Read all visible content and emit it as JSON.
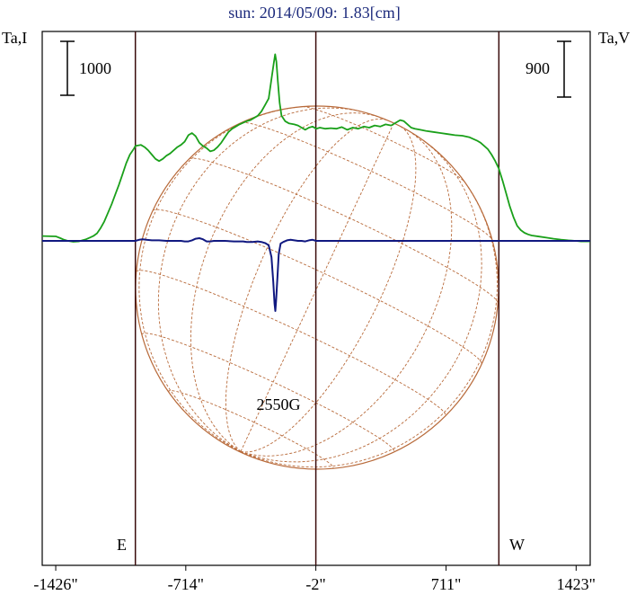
{
  "chart_data": {
    "type": "line",
    "title": "sun: 2014/05/09: 1.83[cm]",
    "left_axis_label": "Ta,I",
    "right_axis_label": "Ta,V",
    "left_scale_bar": {
      "label": "1000",
      "value": 1000
    },
    "right_scale_bar": {
      "label": "900",
      "value": 900
    },
    "x_unit": "arcsec",
    "xlim": [
      -1500,
      1500
    ],
    "x_ticks": [
      {
        "value": -1426,
        "label": "-1426\""
      },
      {
        "value": -714,
        "label": "-714\""
      },
      {
        "value": -2,
        "label": "-2\""
      },
      {
        "value": 711,
        "label": "711\""
      },
      {
        "value": 1423,
        "label": "1423\""
      }
    ],
    "vertical_lines": [
      -990,
      -2,
      1000
    ],
    "limb_markers": [
      {
        "label": "E",
        "x": -1060
      },
      {
        "label": "W",
        "x": 1110
      }
    ],
    "annotations": [
      {
        "label": "2550G",
        "x": -210
      }
    ],
    "colors": {
      "intensity": "#1aa01a",
      "stokes_v": "#101880",
      "grid": "#b86a3a",
      "axes": "#000000",
      "marker_lines": "#3a0c0c",
      "title": "#1c2a7c"
    },
    "series": [
      {
        "key": "I",
        "points": [
          [
            -1500,
            45
          ],
          [
            -1426,
            42
          ],
          [
            -1420,
            38
          ],
          [
            -1400,
            25
          ],
          [
            -1380,
            10
          ],
          [
            -1360,
            0
          ],
          [
            -1330,
            -8
          ],
          [
            -1300,
            -5
          ],
          [
            -1280,
            5
          ],
          [
            -1260,
            15
          ],
          [
            -1240,
            30
          ],
          [
            -1220,
            45
          ],
          [
            -1200,
            70
          ],
          [
            -1180,
            120
          ],
          [
            -1160,
            180
          ],
          [
            -1140,
            260
          ],
          [
            -1120,
            340
          ],
          [
            -1100,
            430
          ],
          [
            -1080,
            520
          ],
          [
            -1060,
            620
          ],
          [
            -1040,
            720
          ],
          [
            -1020,
            800
          ],
          [
            -1000,
            850
          ],
          [
            -990,
            880
          ],
          [
            -960,
            890
          ],
          [
            -940,
            870
          ],
          [
            -920,
            840
          ],
          [
            -900,
            800
          ],
          [
            -880,
            760
          ],
          [
            -860,
            740
          ],
          [
            -840,
            760
          ],
          [
            -820,
            790
          ],
          [
            -800,
            810
          ],
          [
            -780,
            840
          ],
          [
            -760,
            870
          ],
          [
            -740,
            890
          ],
          [
            -720,
            920
          ],
          [
            -700,
            980
          ],
          [
            -680,
            1000
          ],
          [
            -660,
            970
          ],
          [
            -640,
            910
          ],
          [
            -620,
            880
          ],
          [
            -600,
            860
          ],
          [
            -580,
            830
          ],
          [
            -560,
            840
          ],
          [
            -540,
            870
          ],
          [
            -520,
            910
          ],
          [
            -500,
            960
          ],
          [
            -480,
            1010
          ],
          [
            -460,
            1040
          ],
          [
            -440,
            1060
          ],
          [
            -420,
            1080
          ],
          [
            -400,
            1095
          ],
          [
            -380,
            1110
          ],
          [
            -360,
            1120
          ],
          [
            -340,
            1140
          ],
          [
            -320,
            1160
          ],
          [
            -300,
            1200
          ],
          [
            -280,
            1260
          ],
          [
            -260,
            1320
          ],
          [
            -245,
            1500
          ],
          [
            -232,
            1650
          ],
          [
            -225,
            1730
          ],
          [
            -218,
            1660
          ],
          [
            -210,
            1480
          ],
          [
            -200,
            1280
          ],
          [
            -190,
            1160
          ],
          [
            -170,
            1110
          ],
          [
            -150,
            1090
          ],
          [
            -120,
            1080
          ],
          [
            -100,
            1070
          ],
          [
            -80,
            1050
          ],
          [
            -60,
            1030
          ],
          [
            -40,
            1050
          ],
          [
            -20,
            1060
          ],
          [
            0,
            1040
          ],
          [
            20,
            1050
          ],
          [
            50,
            1040
          ],
          [
            80,
            1045
          ],
          [
            110,
            1040
          ],
          [
            140,
            1055
          ],
          [
            170,
            1030
          ],
          [
            200,
            1050
          ],
          [
            230,
            1040
          ],
          [
            260,
            1060
          ],
          [
            290,
            1050
          ],
          [
            320,
            1070
          ],
          [
            350,
            1060
          ],
          [
            380,
            1080
          ],
          [
            410,
            1070
          ],
          [
            440,
            1100
          ],
          [
            460,
            1120
          ],
          [
            480,
            1110
          ],
          [
            500,
            1080
          ],
          [
            520,
            1050
          ],
          [
            540,
            1040
          ],
          [
            570,
            1030
          ],
          [
            600,
            1020
          ],
          [
            640,
            1010
          ],
          [
            680,
            1000
          ],
          [
            720,
            990
          ],
          [
            760,
            980
          ],
          [
            800,
            975
          ],
          [
            840,
            960
          ],
          [
            880,
            930
          ],
          [
            900,
            910
          ],
          [
            920,
            880
          ],
          [
            940,
            850
          ],
          [
            960,
            800
          ],
          [
            980,
            740
          ],
          [
            1000,
            670
          ],
          [
            1020,
            560
          ],
          [
            1040,
            440
          ],
          [
            1060,
            320
          ],
          [
            1080,
            220
          ],
          [
            1100,
            140
          ],
          [
            1120,
            100
          ],
          [
            1140,
            75
          ],
          [
            1160,
            60
          ],
          [
            1180,
            50
          ],
          [
            1220,
            40
          ],
          [
            1260,
            30
          ],
          [
            1300,
            20
          ],
          [
            1340,
            12
          ],
          [
            1380,
            5
          ],
          [
            1420,
            0
          ],
          [
            1450,
            -5
          ],
          [
            1500,
            -5
          ]
        ]
      },
      {
        "key": "V",
        "points": [
          [
            -1500,
            0
          ],
          [
            -1300,
            0
          ],
          [
            -1100,
            0
          ],
          [
            -1020,
            0
          ],
          [
            -990,
            0
          ],
          [
            -970,
            10
          ],
          [
            -950,
            15
          ],
          [
            -930,
            10
          ],
          [
            -900,
            5
          ],
          [
            -860,
            5
          ],
          [
            -820,
            0
          ],
          [
            -780,
            0
          ],
          [
            -740,
            0
          ],
          [
            -720,
            -5
          ],
          [
            -700,
            -5
          ],
          [
            -680,
            5
          ],
          [
            -660,
            20
          ],
          [
            -640,
            25
          ],
          [
            -620,
            15
          ],
          [
            -600,
            -5
          ],
          [
            -580,
            -5
          ],
          [
            -560,
            0
          ],
          [
            -500,
            0
          ],
          [
            -450,
            -5
          ],
          [
            -400,
            -5
          ],
          [
            -380,
            -10
          ],
          [
            -350,
            -10
          ],
          [
            -320,
            -5
          ],
          [
            -300,
            -10
          ],
          [
            -280,
            -20
          ],
          [
            -260,
            -40
          ],
          [
            -245,
            -150
          ],
          [
            -235,
            -380
          ],
          [
            -228,
            -580
          ],
          [
            -224,
            -650
          ],
          [
            -220,
            -560
          ],
          [
            -212,
            -330
          ],
          [
            -205,
            -120
          ],
          [
            -195,
            -25
          ],
          [
            -180,
            -10
          ],
          [
            -160,
            5
          ],
          [
            -140,
            10
          ],
          [
            -120,
            5
          ],
          [
            -100,
            0
          ],
          [
            -80,
            0
          ],
          [
            -60,
            -5
          ],
          [
            -40,
            5
          ],
          [
            -20,
            10
          ],
          [
            0,
            0
          ],
          [
            100,
            0
          ],
          [
            200,
            0
          ],
          [
            300,
            0
          ],
          [
            400,
            0
          ],
          [
            500,
            0
          ],
          [
            600,
            0
          ],
          [
            700,
            0
          ],
          [
            800,
            0
          ],
          [
            900,
            0
          ],
          [
            1000,
            0
          ],
          [
            1100,
            0
          ],
          [
            1300,
            0
          ],
          [
            1500,
            0
          ]
        ]
      }
    ]
  }
}
